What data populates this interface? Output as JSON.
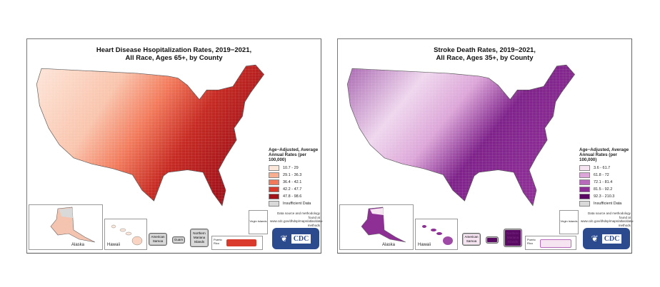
{
  "maps": [
    {
      "title_line1": "Heart Disease Hsopitalization Rates, 2019−2021,",
      "title_line2": "All Race, Ages 65+, by County",
      "legend_title": "Age−Adjusted, Average Annual Rates (per 100,000)",
      "legend": [
        {
          "label": "10.7 - 29",
          "color": "#fde6da"
        },
        {
          "label": "29.1 - 36.3",
          "color": "#f9ae8f"
        },
        {
          "label": "36.4 - 42.1",
          "color": "#f27a5b"
        },
        {
          "label": "42.2 - 47.7",
          "color": "#d93a2b"
        },
        {
          "label": "47.8 - 98.6",
          "color": "#a3131a"
        },
        {
          "label": "Insufficient Data",
          "color": "#d9d9d9"
        }
      ],
      "insets": {
        "alaska": "Alaska",
        "hawaii": "Hawaii",
        "american_samoa": "American Samoa",
        "guam": "Guam",
        "northern_mariana": "Northern Mariana Islands",
        "puerto_rico": "Puerto Rico",
        "virgin_islands": "Virgin Islands"
      },
      "territory_colors": {
        "american_samoa": "#d9d9d9",
        "guam": "#d9d9d9",
        "northern_mariana": "#d9d9d9"
      },
      "source_note": "Data source and methodology found at www.cdc.gov/dhdsp/maps/atlas/data-methods",
      "logo": "CDC"
    },
    {
      "title_line1": "Stroke Death Rates, 2019−2021,",
      "title_line2": "All Race, Ages 35+, by County",
      "legend_title": "Age−Adjusted, Average Annual Rates (per 100,000)",
      "legend": [
        {
          "label": "3.6 - 61.7",
          "color": "#f6e4f3"
        },
        {
          "label": "61.8 - 72",
          "color": "#dca6d8"
        },
        {
          "label": "72.1 - 81.4",
          "color": "#b86bbb"
        },
        {
          "label": "81.5 - 92.2",
          "color": "#8e2f96"
        },
        {
          "label": "92.3 - 210.3",
          "color": "#5a0a62"
        },
        {
          "label": "Insufficient Data",
          "color": "#d9d9d9"
        }
      ],
      "insets": {
        "alaska": "Alaska",
        "hawaii": "Hawaii",
        "american_samoa": "American Samoa",
        "guam": "Guam",
        "northern_mariana": "Northern Mariana Islands",
        "puerto_rico": "Puerto Rico",
        "virgin_islands": "Virgin Islands"
      },
      "territory_colors": {
        "american_samoa": "#f6e4f3",
        "guam": "#5a0a62",
        "northern_mariana": "#5a0a62"
      },
      "source_note": "Data source and methodology found at www.cdc.gov/dhdsp/maps/atlas/data-methods",
      "logo": "CDC"
    }
  ]
}
